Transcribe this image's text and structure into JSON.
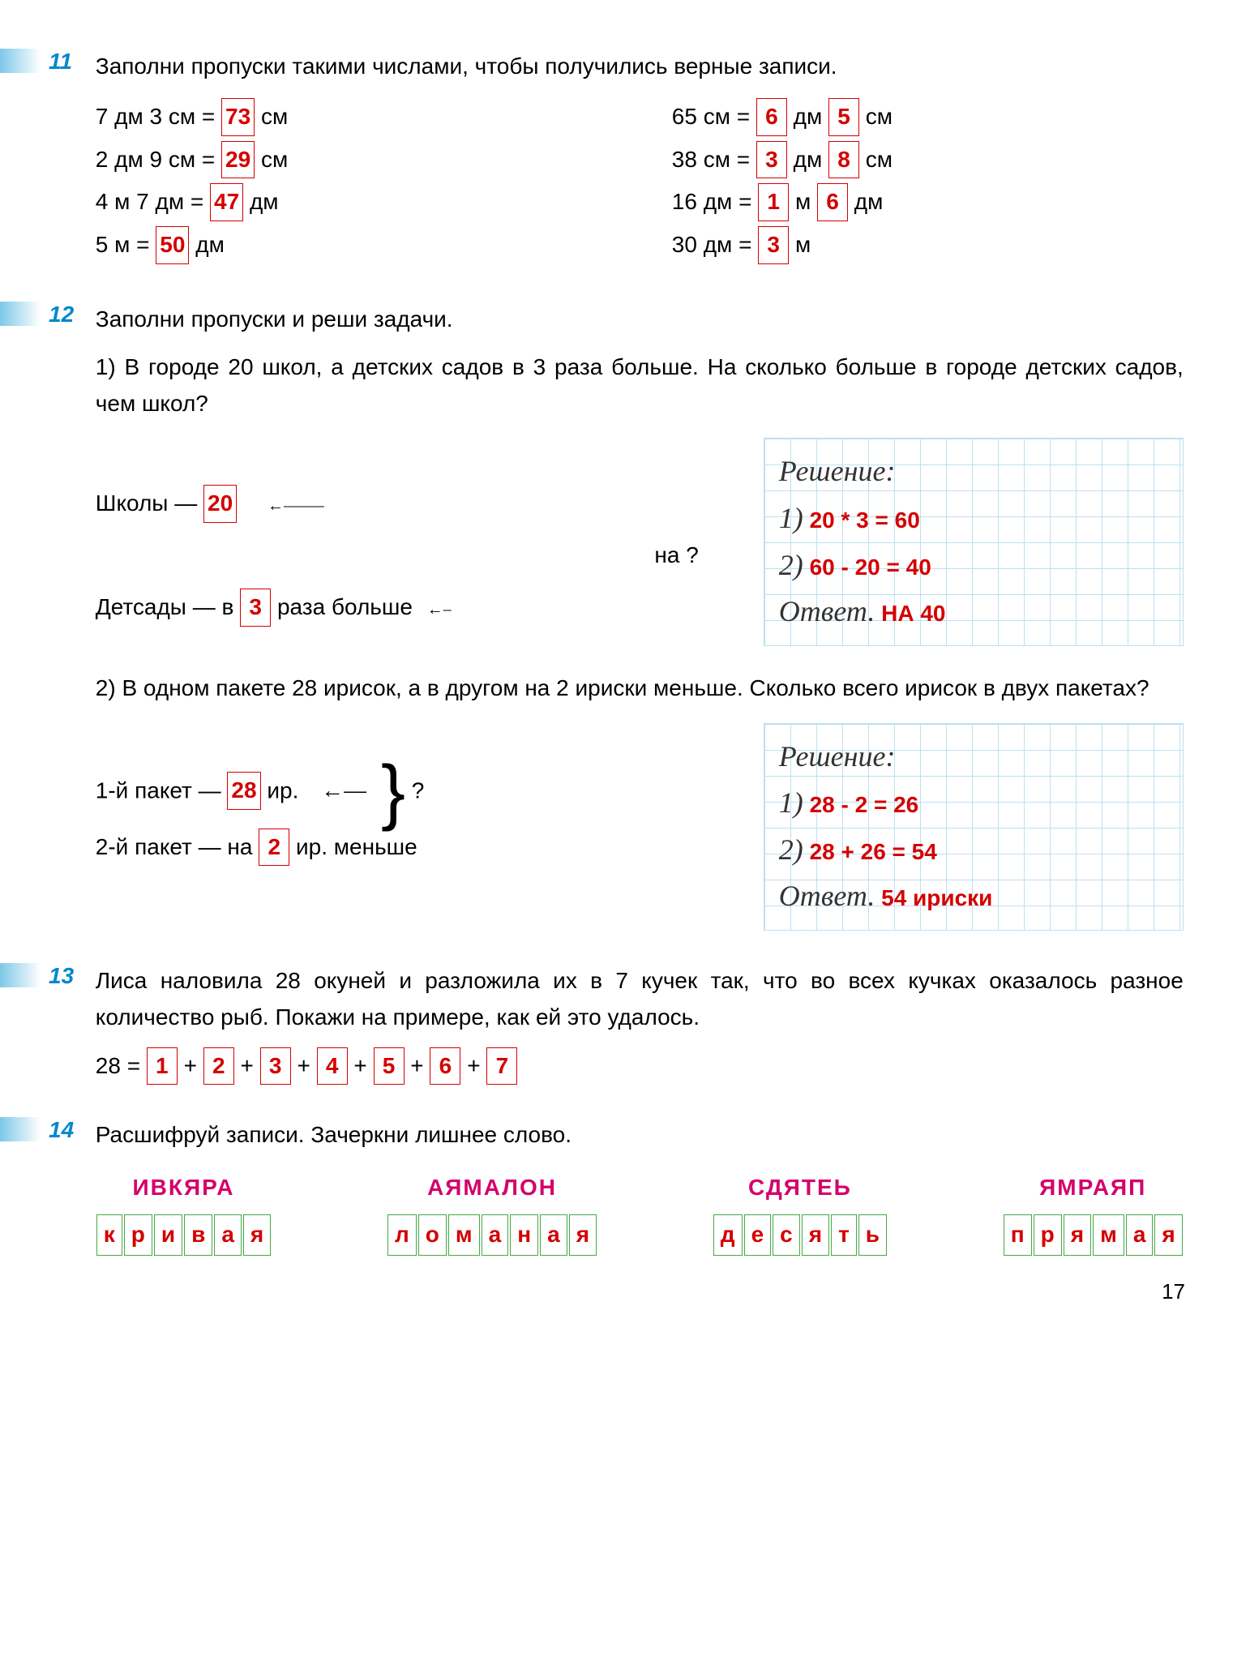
{
  "page_number": "17",
  "colors": {
    "answer_red": "#d40000",
    "task_num_blue": "#0088cc",
    "cipher_pink": "#d4006a",
    "grid_blue": "#bde0f0",
    "box_green": "#4a4"
  },
  "task11": {
    "num": "11",
    "prompt": "Заполни пропуски такими числами, чтобы получились верные записи.",
    "left": [
      {
        "pre": "7 дм 3 см = ",
        "ans": "73",
        "post": " см"
      },
      {
        "pre": "2 дм 9 см = ",
        "ans": "29",
        "post": " см"
      },
      {
        "pre": "4 м 7 дм = ",
        "ans": "47",
        "post": " дм"
      },
      {
        "pre": "5 м = ",
        "ans": "50",
        "post": " дм"
      }
    ],
    "right": [
      {
        "pre": "65 см = ",
        "a1": "6",
        "mid": " дм ",
        "a2": "5",
        "post": " см"
      },
      {
        "pre": "38 см = ",
        "a1": "3",
        "mid": " дм ",
        "a2": "8",
        "post": " см"
      },
      {
        "pre": "16 дм = ",
        "a1": "1",
        "mid": " м ",
        "a2": "6",
        "post": " дм"
      },
      {
        "pre": "30 дм = ",
        "a1": "3",
        "mid": " м",
        "a2": "",
        "post": ""
      }
    ]
  },
  "task12": {
    "num": "12",
    "prompt": "Заполни пропуски и реши задачи.",
    "p1": {
      "text": "1) В городе 20 школ, а детских садов в 3 раза больше. На сколько больше в городе детских садов, чем школ?",
      "schools_label": "Школы — ",
      "schools_val": "20",
      "gardens_label_pre": "Детсады — в ",
      "gardens_val": "3",
      "gardens_label_post": " раза больше",
      "na": "на ?",
      "solution_title": "Решение:",
      "step1_lbl": "1)",
      "step1": "20 * 3 = 60",
      "step2_lbl": "2)",
      "step2": "60 - 20 = 40",
      "answer_lbl": "Ответ.",
      "answer": "НА 40"
    },
    "p2": {
      "text": "2) В одном пакете 28 ирисок, а в другом на 2 ириски меньше. Сколько всего ирисок в двух пакетах?",
      "pk1_label": "1-й пакет — ",
      "pk1_val": "28",
      "pk1_post": " ир.",
      "pk2_label": "2-й пакет — на ",
      "pk2_val": "2",
      "pk2_post": " ир. меньше",
      "q": "?",
      "solution_title": "Решение:",
      "step1_lbl": "1)",
      "step1": "28 - 2 = 26",
      "step2_lbl": "2)",
      "step2": "28 + 26 = 54",
      "answer_lbl": "Ответ.",
      "answer": "54 ириски"
    }
  },
  "task13": {
    "num": "13",
    "prompt": "Лиса наловила 28 окуней и разложила их в 7 кучек так, что во всех кучках оказалось разное количество рыб. Покажи на примере, как ей это удалось.",
    "eq_pre": "28 = ",
    "parts": [
      "1",
      "2",
      "3",
      "4",
      "5",
      "6",
      "7"
    ]
  },
  "task14": {
    "num": "14",
    "prompt": "Расшифруй записи. Зачеркни лишнее слово.",
    "items": [
      {
        "src": "ИВКЯРА",
        "letters": [
          "к",
          "р",
          "и",
          "в",
          "а",
          "я"
        ],
        "strike": false
      },
      {
        "src": "АЯМАЛОН",
        "letters": [
          "л",
          "о",
          "м",
          "а",
          "н",
          "а",
          "я"
        ],
        "strike": false
      },
      {
        "src": "СДЯТЕЬ",
        "letters": [
          "д",
          "е",
          "с",
          "я",
          "т",
          "ь"
        ],
        "strike": true
      },
      {
        "src": "ЯМРАЯП",
        "letters": [
          "п",
          "р",
          "я",
          "м",
          "а",
          "я"
        ],
        "strike": false
      }
    ]
  }
}
